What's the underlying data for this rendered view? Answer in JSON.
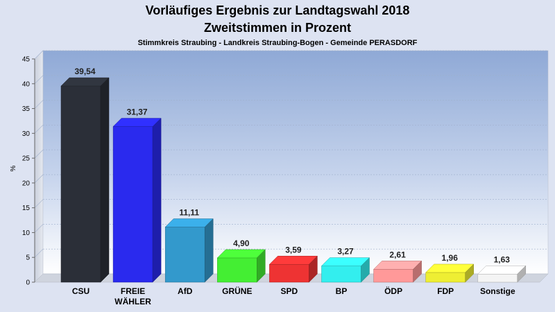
{
  "chart_data": {
    "type": "bar",
    "title": "Vorläufiges Ergebnis zur Landtagswahl 2018",
    "title_line2": "Zweitstimmen in Prozent",
    "subtitle": "Stimmkreis Straubing - Landkreis Straubing-Bogen - Gemeinde PERASDORF",
    "ylabel": "%",
    "xlabel": "",
    "ylim": [
      0,
      45
    ],
    "yticks": [
      "0",
      "5",
      "10",
      "15",
      "20",
      "25",
      "30",
      "35",
      "40",
      "45"
    ],
    "grid": true,
    "categories": [
      [
        "CSU"
      ],
      [
        "FREIE",
        "WÄHLER"
      ],
      [
        "AfD"
      ],
      [
        "GRÜNE"
      ],
      [
        "SPD"
      ],
      [
        "BP"
      ],
      [
        "ÖDP"
      ],
      [
        "FDP"
      ],
      [
        "Sonstige"
      ]
    ],
    "values": [
      39.54,
      31.37,
      11.11,
      4.9,
      3.59,
      3.27,
      2.61,
      1.96,
      1.63
    ],
    "value_labels": [
      "39,54",
      "31,37",
      "11,11",
      "4,90",
      "3,59",
      "3,27",
      "2,61",
      "1,96",
      "1,63"
    ],
    "colors": [
      "#2b2f38",
      "#2a2aee",
      "#3399cc",
      "#44ee33",
      "#ee3333",
      "#33eeee",
      "#ff9999",
      "#eeee33",
      "#f4f4f4"
    ]
  }
}
